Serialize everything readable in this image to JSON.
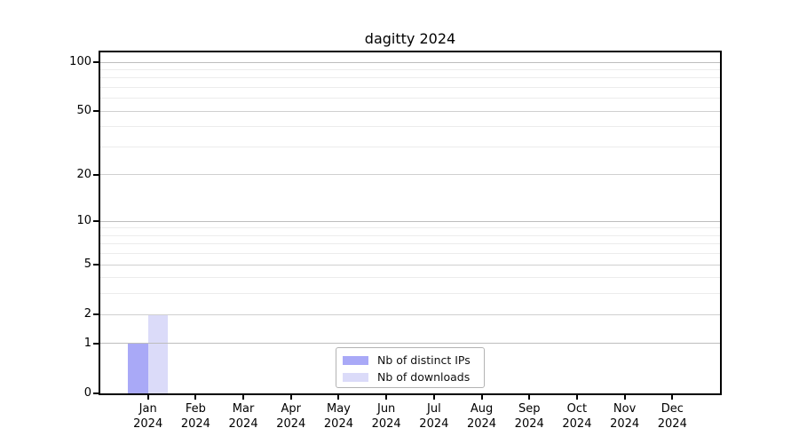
{
  "chart_data": {
    "type": "bar",
    "title": "dagitty 2024",
    "categories": [
      "Jan",
      "Feb",
      "Mar",
      "Apr",
      "May",
      "Jun",
      "Jul",
      "Aug",
      "Sep",
      "Oct",
      "Nov",
      "Dec"
    ],
    "category_year": "2024",
    "series": [
      {
        "name": "Nb of distinct IPs",
        "color": "#a9a9f7",
        "values": [
          1,
          0,
          0,
          0,
          0,
          0,
          0,
          0,
          0,
          0,
          0,
          0
        ]
      },
      {
        "name": "Nb of downloads",
        "color": "#dbdbf9",
        "values": [
          2,
          0,
          0,
          0,
          0,
          0,
          0,
          0,
          0,
          0,
          0,
          0
        ]
      }
    ],
    "y_axis": {
      "scale": "log1p",
      "tick_values": [
        0,
        1,
        2,
        5,
        10,
        20,
        50,
        100
      ],
      "power10_values": [
        1,
        10,
        100
      ],
      "minor_gridline_values": [
        3,
        4,
        6,
        7,
        8,
        9,
        30,
        40,
        60,
        70,
        80,
        90
      ],
      "max": 100
    },
    "x_axis": {
      "label_lines": 2
    },
    "legend": {
      "position": "bottom-center-inside",
      "border_color": "#b3b3b3"
    },
    "grid": {
      "power10_color": "#bdbdbd",
      "labeled_color": "#d0d0d0",
      "minor_color": "#ececec"
    },
    "colors": {
      "axis": "#000000",
      "background": "#ffffff"
    }
  }
}
